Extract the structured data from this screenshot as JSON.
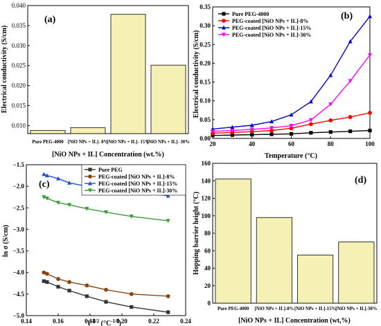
{
  "chart_data": [
    {
      "id": "a",
      "type": "bar",
      "panel_label": "(a)",
      "categories": [
        "Pure PEG-4000",
        "[NiO NPs + IL]- 8%",
        "[NiO NPs + IL]- 15%",
        "[NiO NPs + IL]- 30%"
      ],
      "values": [
        0.0088,
        0.0095,
        0.0378,
        0.0251
      ],
      "xlabel": "[NiO NPs + IL] Concentration (wt.%)",
      "ylabel": "Electrical conductivity (S/cm)",
      "ylim": [
        0.008,
        0.04
      ],
      "yticks": [
        "0.010",
        "0.015",
        "0.020",
        "0.025",
        "0.030",
        "0.035",
        "0.040"
      ],
      "bar_color": "#f5f0b4"
    },
    {
      "id": "b",
      "type": "line",
      "panel_label": "(b)",
      "x": [
        20,
        30,
        40,
        50,
        60,
        70,
        80,
        90,
        100
      ],
      "series": [
        {
          "name": "Pure PEG-4000",
          "color": "#000000",
          "marker": "square",
          "values": [
            0.008,
            0.009,
            0.01,
            0.011,
            0.012,
            0.015,
            0.017,
            0.019,
            0.021
          ]
        },
        {
          "name": "PEG-coated [NiO NPs + IL]-8%",
          "color": "#ff0000",
          "marker": "circle",
          "values": [
            0.014,
            0.016,
            0.018,
            0.021,
            0.027,
            0.038,
            0.048,
            0.057,
            0.068
          ]
        },
        {
          "name": "PEG-coated [NiO NPs + IL]-15%",
          "color": "#0000cc",
          "marker": "triangle-up",
          "values": [
            0.025,
            0.03,
            0.035,
            0.045,
            0.063,
            0.098,
            0.168,
            0.258,
            0.325
          ]
        },
        {
          "name": "PEG-coated [NiO NPs + IL]-30%",
          "color": "#ff00ff",
          "marker": "triangle-down",
          "values": [
            0.019,
            0.021,
            0.024,
            0.028,
            0.034,
            0.049,
            0.091,
            0.153,
            0.222
          ]
        }
      ],
      "xlabel": "Temperature (°C)",
      "ylabel": "Electrical conductivity (S/cm)",
      "xlim": [
        20,
        100
      ],
      "ylim": [
        0,
        0.35
      ],
      "xticks": [
        "20",
        "40",
        "60",
        "80",
        "100"
      ],
      "yticks": [
        "0.00",
        "0.05",
        "0.10",
        "0.15",
        "0.20",
        "0.25",
        "0.30",
        "0.35"
      ],
      "legend": "top-left"
    },
    {
      "id": "c",
      "type": "line",
      "panel_label": "(c)",
      "x": [
        0.151,
        0.153,
        0.16,
        0.167,
        0.178,
        0.19,
        0.206,
        0.229
      ],
      "series": [
        {
          "name": "Pure PEG",
          "color": "#333333",
          "marker": "square",
          "values": [
            -4.2,
            -4.22,
            -4.33,
            -4.42,
            -4.55,
            -4.68,
            -4.8,
            -4.92
          ]
        },
        {
          "name": "PEG-coated [NiO NPs + IL]-8%",
          "color": "#8b4513",
          "marker": "circle",
          "values": [
            -4.0,
            -4.03,
            -4.15,
            -4.22,
            -4.3,
            -4.4,
            -4.5,
            -4.55
          ]
        },
        {
          "name": "PEG-coated [NiO NPs + IL]-15%",
          "color": "#1e4fd8",
          "marker": "triangle-up",
          "values": [
            -1.72,
            -1.75,
            -1.82,
            -1.92,
            -2.0,
            -2.06,
            -2.12,
            -2.22
          ]
        },
        {
          "name": "PEG-coated [NiO NPs + IL]-30%",
          "color": "#3a9a3a",
          "marker": "triangle-down",
          "values": [
            -2.25,
            -2.28,
            -2.38,
            -2.43,
            -2.52,
            -2.6,
            -2.7,
            -2.8
          ]
        }
      ],
      "xlabel_main": "T",
      "xlabel_sup": "-1/2",
      "xlabel_unit_a": " (°C",
      "xlabel_unit_sup": "-1/2",
      "xlabel_unit_b": ")",
      "ylabel": "ln σ (S/cm)",
      "xlim": [
        0.14,
        0.24
      ],
      "ylim": [
        -5.0,
        -1.5
      ],
      "xticks": [
        "0.14",
        "0.16",
        "0.18",
        "0.20",
        "0.22",
        "0.24"
      ],
      "yticks": [
        "−5.0",
        "−4.5",
        "−4.0",
        "−3.5",
        "−3.0",
        "−2.5",
        "−2.0",
        "−1.5"
      ],
      "legend": "top-right"
    },
    {
      "id": "d",
      "type": "bar",
      "panel_label": "(d)",
      "categories": [
        "Pure PEG-4000",
        "[NiO NPs + IL]-8%",
        "[NiO NPs + IL]-15%",
        "[NiO NPs + IL]-30%"
      ],
      "values": [
        142,
        98,
        55,
        70
      ],
      "xlabel": "[NiO NPs + IL] Concentration (wt,%)",
      "ylabel": "Hopping barrier height (°C)",
      "ylim": [
        0,
        160
      ],
      "yticks": [
        "0",
        "20",
        "40",
        "60",
        "80",
        "100",
        "120",
        "140",
        "160"
      ],
      "bar_color": "#f5f0b4"
    }
  ]
}
